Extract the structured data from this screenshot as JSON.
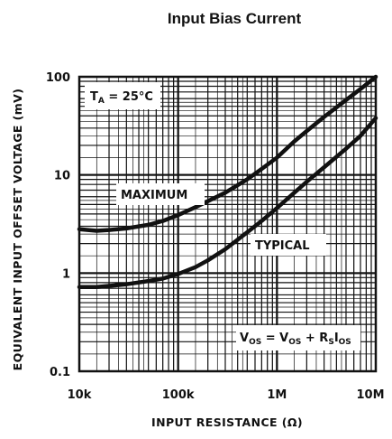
{
  "chart_data": {
    "type": "line",
    "title": "Input Bias Current",
    "xlabel": "INPUT RESISTANCE (Ω)",
    "ylabel": "EQUIVALENT INPUT OFFSET VOLTAGE (mV)",
    "xscale": "log",
    "yscale": "log",
    "xlim": [
      10000,
      10000000
    ],
    "ylim": [
      0.1,
      100
    ],
    "grid": true,
    "x_ticks": [
      {
        "value": 10000,
        "label": "10k"
      },
      {
        "value": 100000,
        "label": "100k"
      },
      {
        "value": 1000000,
        "label": "1M"
      },
      {
        "value": 10000000,
        "label": "10M"
      }
    ],
    "y_ticks": [
      {
        "value": 100,
        "label": "100"
      },
      {
        "value": 10,
        "label": "10"
      },
      {
        "value": 1,
        "label": "1"
      },
      {
        "value": 0.1,
        "label": "0.1"
      }
    ],
    "series": [
      {
        "name": "MAXIMUM",
        "x": [
          10000,
          15000,
          20000,
          30000,
          50000,
          70000,
          100000,
          150000,
          200000,
          300000,
          500000,
          700000,
          1000000,
          1500000,
          2000000,
          3000000,
          5000000,
          7000000,
          10000000
        ],
        "y": [
          2.8,
          2.7,
          2.75,
          2.85,
          3.1,
          3.4,
          3.9,
          4.7,
          5.4,
          6.6,
          9.0,
          11.5,
          15,
          22,
          28,
          39,
          58,
          75,
          100
        ]
      },
      {
        "name": "TYPICAL",
        "x": [
          10000,
          15000,
          20000,
          30000,
          50000,
          70000,
          100000,
          150000,
          200000,
          300000,
          500000,
          700000,
          1000000,
          1500000,
          2000000,
          3000000,
          5000000,
          7000000,
          10000000
        ],
        "y": [
          0.72,
          0.72,
          0.74,
          0.77,
          0.83,
          0.88,
          0.98,
          1.15,
          1.35,
          1.75,
          2.6,
          3.4,
          4.6,
          6.6,
          8.5,
          12,
          18.5,
          25,
          38
        ]
      }
    ],
    "annotations": {
      "ta": {
        "main": "T",
        "sub": "A",
        "rest": " = 25°C"
      },
      "maximum": "MAXIMUM",
      "typical": "TYPICAL",
      "formula": {
        "v1": "V",
        "s1": "OS",
        "eq": " = ",
        "v2": "V",
        "s2": "OS",
        "plus": " + R",
        "s3": "S",
        "i": "I",
        "s4": "OS"
      }
    }
  }
}
